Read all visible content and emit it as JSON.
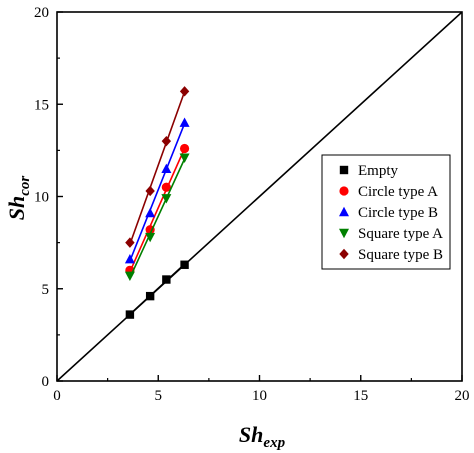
{
  "chart_data": {
    "type": "scatter",
    "xlabel": {
      "main": "Sh",
      "sub": "exp"
    },
    "ylabel": {
      "main": "Sh",
      "sub": "cor"
    },
    "xlim": [
      0,
      20
    ],
    "ylim": [
      0,
      20
    ],
    "x_ticks": [
      "0",
      "5",
      "10",
      "15",
      "20"
    ],
    "y_ticks": [
      "0",
      "5",
      "10",
      "15",
      "20"
    ],
    "grid": false,
    "legend_position": "right-center",
    "reference_line": {
      "from": [
        0,
        0
      ],
      "to": [
        20,
        20
      ],
      "color": "#000000"
    },
    "series": [
      {
        "name": "Empty",
        "marker": "square",
        "color": "#000000",
        "fit_line": true,
        "x": [
          3.6,
          4.6,
          5.4,
          6.3
        ],
        "y": [
          3.6,
          4.6,
          5.5,
          6.3
        ]
      },
      {
        "name": "Circle type A",
        "marker": "circle",
        "color": "#ff0000",
        "fit_line": true,
        "x": [
          3.6,
          4.6,
          5.4,
          6.3
        ],
        "y": [
          6.0,
          8.2,
          10.5,
          12.6
        ]
      },
      {
        "name": "Circle type B",
        "marker": "triangle-up",
        "color": "#0000ff",
        "fit_line": true,
        "x": [
          3.6,
          4.6,
          5.4,
          6.3
        ],
        "y": [
          6.6,
          9.1,
          11.5,
          14.0
        ]
      },
      {
        "name": "Square type A",
        "marker": "triangle-down",
        "color": "#008000",
        "fit_line": true,
        "x": [
          3.6,
          4.6,
          5.4,
          6.3
        ],
        "y": [
          5.7,
          7.8,
          9.9,
          12.1
        ]
      },
      {
        "name": "Square type B",
        "marker": "diamond",
        "color": "#8b0000",
        "fit_line": true,
        "x": [
          3.6,
          4.6,
          5.4,
          6.3
        ],
        "y": [
          7.5,
          10.3,
          13.0,
          15.7
        ]
      }
    ]
  }
}
